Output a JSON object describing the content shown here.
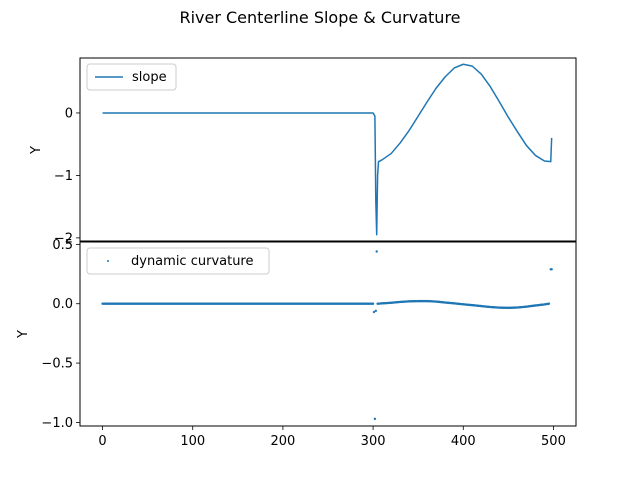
{
  "figure": {
    "title": "River Centerline Slope & Curvature"
  },
  "colors": {
    "series": "#1f77b4",
    "axes": "#000000",
    "legend_border": "#cccccc"
  },
  "chart_data": [
    {
      "type": "line",
      "title": "",
      "xlabel": "",
      "ylabel": "Y",
      "xlim": [
        -25,
        525
      ],
      "ylim": [
        -2.05,
        0.88
      ],
      "yticks": [
        0,
        -1,
        -2
      ],
      "ytick_labels": [
        "0",
        "−1",
        "−2"
      ],
      "legend": "top-left",
      "grid": false,
      "series": [
        {
          "name": "slope",
          "x": [
            0,
            50,
            100,
            150,
            200,
            250,
            300,
            302,
            303,
            304,
            305,
            306,
            310,
            320,
            330,
            340,
            350,
            360,
            370,
            380,
            390,
            400,
            410,
            420,
            430,
            440,
            450,
            460,
            470,
            480,
            490,
            497,
            498
          ],
          "y": [
            0,
            0,
            0,
            0,
            0,
            0,
            0,
            -0.05,
            -1.4,
            -1.95,
            -1.0,
            -0.78,
            -0.75,
            -0.65,
            -0.48,
            -0.28,
            -0.05,
            0.18,
            0.4,
            0.58,
            0.72,
            0.78,
            0.75,
            0.62,
            0.42,
            0.18,
            -0.07,
            -0.3,
            -0.52,
            -0.68,
            -0.77,
            -0.78,
            -0.4
          ]
        }
      ]
    },
    {
      "type": "scatter",
      "title": "",
      "xlabel": "",
      "ylabel": "Y",
      "xlim": [
        -25,
        525
      ],
      "ylim": [
        -1.03,
        0.52
      ],
      "xticks": [
        0,
        100,
        200,
        300,
        400,
        500
      ],
      "xtick_labels": [
        "0",
        "100",
        "200",
        "300",
        "400",
        "500"
      ],
      "yticks": [
        0.5,
        0.0,
        -0.5,
        -1.0
      ],
      "ytick_labels": [
        "0.5",
        "0.0",
        "−0.5",
        "−1.0"
      ],
      "legend": "top-left",
      "grid": false,
      "series": [
        {
          "name": "dynamic curvature",
          "x": [
            0,
            25,
            50,
            75,
            100,
            125,
            150,
            175,
            200,
            225,
            250,
            275,
            300,
            301,
            302,
            303,
            304,
            305,
            310,
            320,
            330,
            340,
            350,
            360,
            370,
            380,
            390,
            400,
            410,
            420,
            430,
            440,
            450,
            460,
            470,
            480,
            490,
            495,
            497,
            498
          ],
          "y": [
            0,
            0,
            0,
            0,
            0,
            0,
            0,
            0,
            0,
            0,
            0,
            0,
            0,
            -0.07,
            -0.97,
            -0.06,
            0.44,
            0.0,
            0.003,
            0.008,
            0.015,
            0.02,
            0.022,
            0.022,
            0.018,
            0.01,
            0.003,
            -0.005,
            -0.012,
            -0.02,
            -0.028,
            -0.033,
            -0.035,
            -0.032,
            -0.025,
            -0.015,
            -0.006,
            0.0,
            0.29,
            0.29
          ]
        }
      ]
    }
  ]
}
